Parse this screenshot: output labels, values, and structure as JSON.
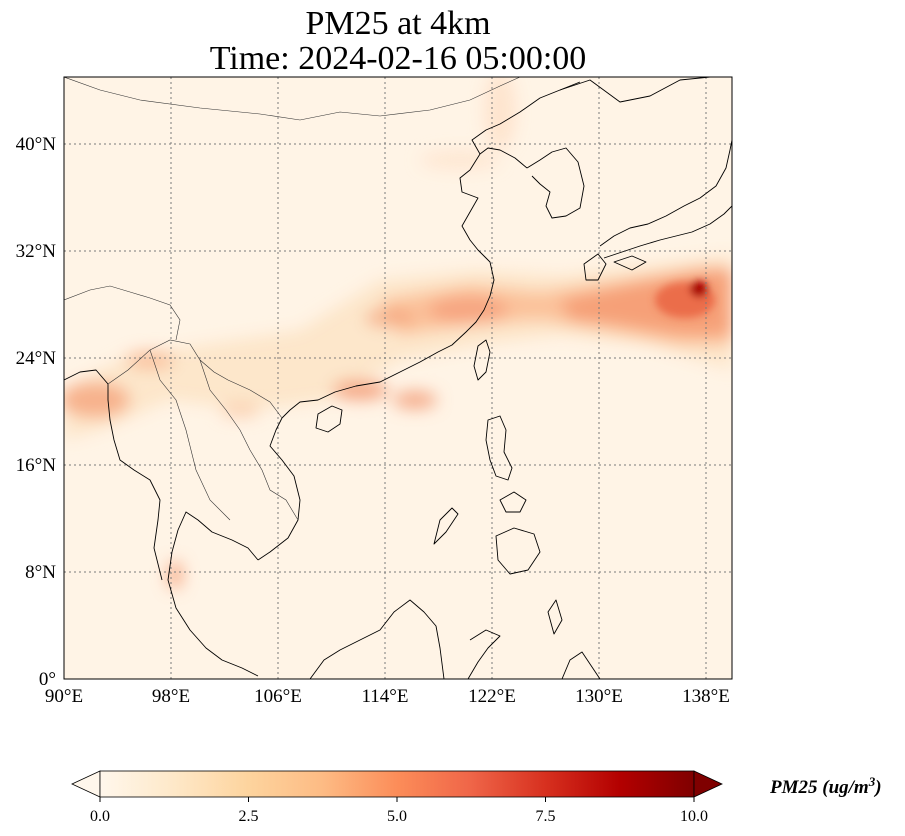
{
  "title": {
    "line1": "PM25 at 4km",
    "line2": "Time: 2024-02-16 05:00:00"
  },
  "map": {
    "projection": "PlateCarree",
    "lon_range": [
      90,
      140
    ],
    "lat_range": [
      0,
      45
    ],
    "gridlines": "dotted",
    "lon_ticks": [
      "90°E",
      "98°E",
      "106°E",
      "114°E",
      "122°E",
      "130°E",
      "138°E"
    ],
    "lat_ticks": [
      "0°",
      "8°N",
      "16°N",
      "24°N",
      "32°N",
      "40°N"
    ],
    "colormap": "OrRd",
    "field_features": [
      {
        "name": "main plume",
        "lon": [
          110,
          140
        ],
        "lat": [
          24,
          30
        ],
        "value": 5.5
      },
      {
        "name": "hotspot",
        "lon": [
          137.6
        ],
        "lat": [
          29.3
        ],
        "value": 10
      }
    ]
  },
  "colorbar": {
    "label": "PM25 (ug/m",
    "label_superscript": "3",
    "label_end": ")",
    "range": [
      0,
      10
    ],
    "extend": "both",
    "ticks": [
      "0.0",
      "2.5",
      "5.0",
      "7.5",
      "10.0"
    ],
    "colors": [
      "#fff7ec",
      "#fee8c8",
      "#fdd49e",
      "#fdbb84",
      "#fc8d59",
      "#ef6548",
      "#d7301f",
      "#b30000",
      "#7f0000"
    ]
  }
}
